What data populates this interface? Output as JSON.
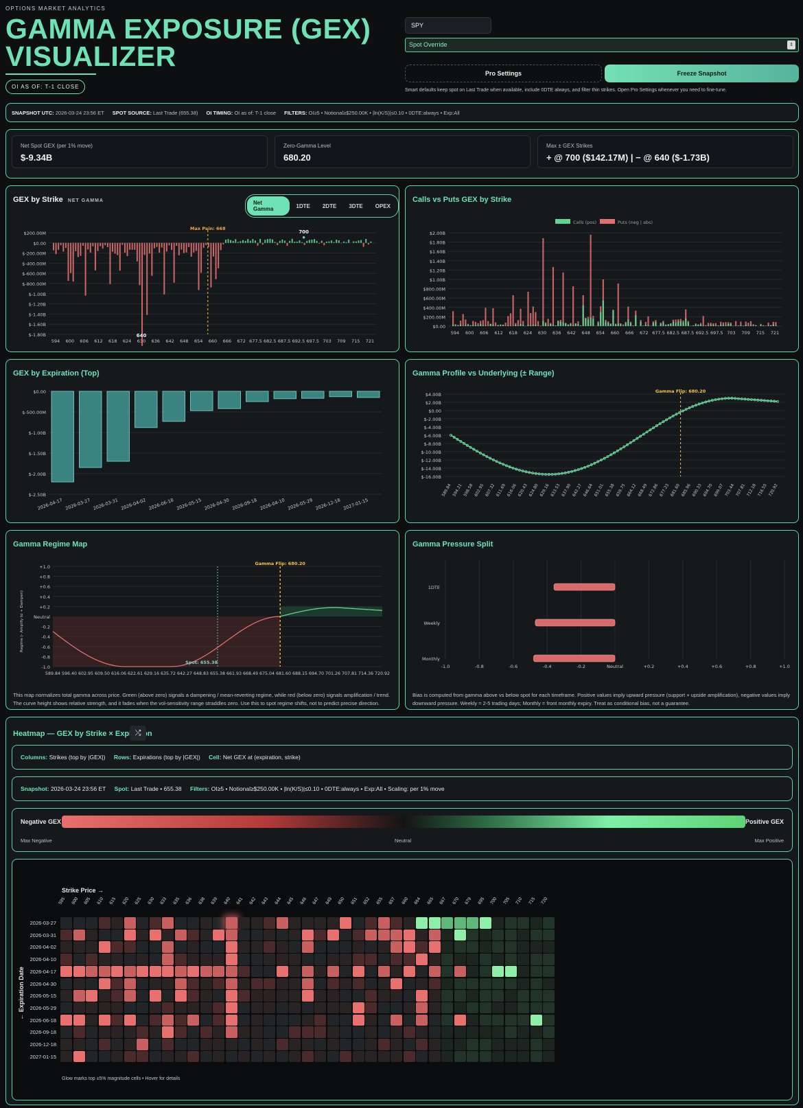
{
  "header": {
    "eyebrow": "OPTIONS MARKET ANALYTICS",
    "title_line1": "GAMMA EXPOSURE (GEX)",
    "title_line2": "VISUALIZER",
    "oi_badge": "OI AS OF: T-1 CLOSE"
  },
  "controls": {
    "ticker_value": "SPY",
    "spot_override_placeholder": "Spot Override",
    "pro_settings_label": "Pro Settings",
    "freeze_label": "Freeze Snapshot",
    "hint": "Smart defaults keep spot on Last Trade when available, include 0DTE always, and filter thin strikes. Open Pro Settings whenever you need to fine-tune."
  },
  "snapshot_bar": {
    "utc_label": "SNAPSHOT UTC:",
    "utc_value": "2026-03-24 23:56 ET",
    "spot_label": "SPOT SOURCE:",
    "spot_value": "Last Trade (655.38)",
    "oi_label": "OI TIMING:",
    "oi_value": "OI as of: T-1 close",
    "filters_label": "FILTERS:",
    "filters_value": "OI≥5 • Notional≥$250.00K • |ln(K/S)|≤0.10 • 0DTE:always • Exp:All"
  },
  "metrics": [
    {
      "label": "Net Spot GEX (per 1% move)",
      "value": "$-9.34B"
    },
    {
      "label": "Zero-Gamma Level",
      "value": "680.20"
    },
    {
      "label": "Max ± GEX Strikes",
      "value": "+ @ 700 ($142.17M) | − @ 640 ($-1.73B)"
    }
  ],
  "gex_strike": {
    "title": "GEX by Strike",
    "subtitle": "NET GAMMA",
    "tabs": [
      "Net Gamma",
      "1DTE",
      "2DTE",
      "3DTE",
      "OPEX"
    ],
    "active_tab": 0,
    "max_pain_label": "Max Pain: 668",
    "max_label": "700",
    "min_label": "640",
    "y_ticks": [
      "$200.00M",
      "$0.00",
      "$-200.00M",
      "$-400.00M",
      "$-600.00M",
      "$-800.00M",
      "$-1.00B",
      "$-1.20B",
      "$-1.40B",
      "$-1.60B",
      "$-1.80B"
    ],
    "x_ticks": [
      "594",
      "600",
      "606",
      "612",
      "618",
      "624",
      "630",
      "636",
      "642",
      "648",
      "654",
      "660",
      "666",
      "672",
      "677.5",
      "682.5",
      "687.5",
      "692.5",
      "697.5",
      "703",
      "709",
      "715",
      "721"
    ]
  },
  "calls_puts": {
    "title": "Calls vs Puts GEX by Strike",
    "legend_calls": "Calls (pos)",
    "legend_puts": "Puts (neg | abs)",
    "y_ticks": [
      "$2.00B",
      "$1.80B",
      "$1.60B",
      "$1.40B",
      "$1.20B",
      "$1.00B",
      "$800.00M",
      "$600.00M",
      "$400.00M",
      "$200.00M",
      "$0.00"
    ],
    "x_ticks": [
      "594",
      "600",
      "606",
      "612",
      "618",
      "624",
      "630",
      "636",
      "642",
      "648",
      "654",
      "660",
      "666",
      "672",
      "677.5",
      "682.5",
      "687.5",
      "692.5",
      "697.5",
      "703",
      "709",
      "715",
      "721"
    ]
  },
  "gex_expiration": {
    "title": "GEX by Expiration (Top)",
    "y_ticks": [
      "$0.00",
      "$-500.00M",
      "$-1.00B",
      "$-1.50B",
      "$-2.00B",
      "$-2.50B"
    ],
    "x_ticks": [
      "2026-04-17",
      "2026-03-27",
      "2026-03-31",
      "2026-04-02",
      "2026-06-18",
      "2026-05-15",
      "2026-04-30",
      "2026-09-18",
      "2026-04-10",
      "2026-05-29",
      "2026-12-18",
      "2027-01-15"
    ]
  },
  "gamma_profile": {
    "title": "Gamma Profile vs Underlying (± Range)",
    "flip_label": "Gamma Flip: 680.20",
    "y_ticks": [
      "$4.00B",
      "$2.00B",
      "$0.00",
      "$-2.00B",
      "$-4.00B",
      "$-6.00B",
      "$-8.00B",
      "$-10.00B",
      "$-12.00B",
      "$-14.00B",
      "$-16.00B"
    ],
    "x_ticks": [
      "589.84",
      "594.21",
      "598.58",
      "602.95",
      "607.32",
      "611.69",
      "616.06",
      "620.43",
      "624.80",
      "629.16",
      "633.53",
      "637.90",
      "642.27",
      "646.64",
      "651.01",
      "655.38",
      "659.75",
      "664.12",
      "668.49",
      "672.86",
      "677.23",
      "681.60",
      "685.96",
      "690.33",
      "694.70",
      "699.07",
      "703.44",
      "707.81",
      "712.18",
      "716.55",
      "720.92"
    ]
  },
  "regime_map": {
    "title": "Gamma Regime Map",
    "flip_label": "Gamma Flip: 680.20",
    "spot_label": "Spot: 655.38",
    "y_axis_label": "Regime (- Amplify to + Dampen)",
    "neutral_label": "Neutral",
    "y_ticks": [
      "+1.0",
      "+0.8",
      "+0.6",
      "+0.4",
      "+0.2",
      "-0.2",
      "-0.4",
      "-0.6",
      "-0.8",
      "-1.0"
    ],
    "x_ticks": [
      "589.84",
      "596.40",
      "602.95",
      "609.50",
      "616.06",
      "622.61",
      "629.16",
      "635.72",
      "642.27",
      "648.83",
      "655.38",
      "661.93",
      "668.49",
      "675.04",
      "681.60",
      "688.15",
      "694.70",
      "701.26",
      "707.81",
      "714.36",
      "720.92"
    ],
    "description": "This map normalizes total gamma across price. Green (above zero) signals a dampening / mean-reverting regime, while red (below zero) signals amplification / trend. The curve height shows relative strength, and it fades when the vol-sensitivity range straddles zero. Use this to spot regime shifts, not to predict precise direction."
  },
  "pressure_split": {
    "title": "Gamma Pressure Split",
    "rows": [
      "1DTE",
      "Weekly",
      "Monthly"
    ],
    "x_ticks": [
      "-1.0",
      "-0.8",
      "-0.6",
      "-0.4",
      "-0.2",
      "Neutral",
      "+0.2",
      "+0.4",
      "+0.6",
      "+0.8",
      "+1.0"
    ],
    "description": "Bias is computed from gamma above vs below spot for each timeframe. Positive values imply upward pressure (support + upside amplification), negative values imply downward pressure. Weekly = 2-5 trading days; Monthly = front monthly expiry. Treat as conditional bias, not a guarantee."
  },
  "heatmap": {
    "title": "Heatmap — GEX by Strike × Expiration",
    "info1": {
      "columns_label": "Columns:",
      "columns_value": "Strikes (top by |GEX|)",
      "rows_label": "Rows:",
      "rows_value": "Expirations (top by |GEX|)",
      "cell_label": "Cell:",
      "cell_value": "Net GEX at (expiration, strike)"
    },
    "info2": {
      "snap_label": "Snapshot:",
      "snap_value": "2026-03-24 23:56 ET",
      "spot_label": "Spot:",
      "spot_value": "Last Trade • 655.38",
      "filters_label": "Filters:",
      "filters_value": "OI≥5 • Notional≥$250.00K • |ln(K/S)|≤0.10 • 0DTE:always • Exp:All • Scaling: per 1% move"
    },
    "scale": {
      "neg": "Negative GEX",
      "pos": "Positive GEX",
      "min": "Max Negative",
      "mid": "Neutral",
      "max": "Max Positive"
    },
    "x_axis_title": "Strike Price →",
    "y_axis_title": "← Expiration Date",
    "strikes": [
      "595",
      "600",
      "605",
      "610",
      "615",
      "620",
      "625",
      "630",
      "633",
      "635",
      "636",
      "638",
      "639",
      "640",
      "641",
      "642",
      "643",
      "644",
      "645",
      "646",
      "647",
      "649",
      "650",
      "651",
      "652",
      "655",
      "657",
      "660",
      "664",
      "665",
      "667",
      "670",
      "679",
      "695",
      "700",
      "705",
      "710",
      "715",
      "720"
    ],
    "expirations": [
      "2026-03-27",
      "2026-03-31",
      "2026-04-02",
      "2026-04-10",
      "2026-04-17",
      "2026-04-30",
      "2026-05-15",
      "2026-05-29",
      "2026-06-18",
      "2026-09-18",
      "2026-12-18",
      "2027-01-15"
    ],
    "footer": "Glow marks top ±5% magnitude cells • Hover for details"
  },
  "colors": {
    "accent": "#6ee2b5",
    "neg": "#e07070",
    "pos": "#5fd38f",
    "gold": "#f0c64a"
  }
}
